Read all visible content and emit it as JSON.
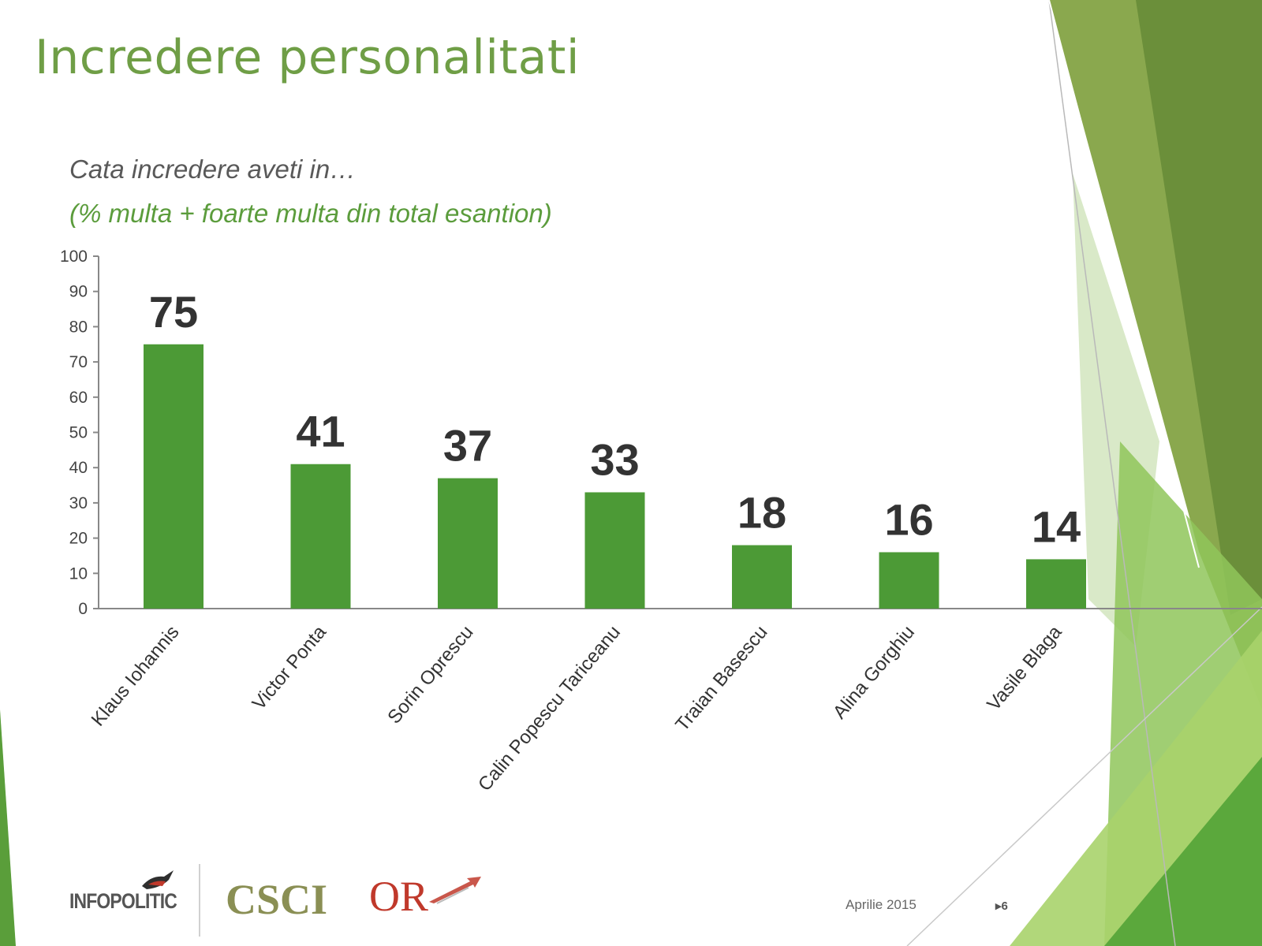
{
  "slide": {
    "title": "Incredere personalitati",
    "question": "Cata incredere aveti in…",
    "note": "(% multa + foarte multa din total esantion)"
  },
  "footer": {
    "date": "Aprilie 2015",
    "page": "▸6",
    "logos": [
      "INFOPOLITIC",
      "CSCI",
      "OR"
    ]
  },
  "colors": {
    "bar": "#4c9a36",
    "title": "#6f9e46",
    "note": "#5b9c3c",
    "value_label": "#333333",
    "axis": "#888888"
  },
  "icons": [
    "infopolitic-bird-icon",
    "or-arrow-icon",
    "page-arrow-icon"
  ],
  "chart_data": {
    "type": "bar",
    "title": "",
    "xlabel": "",
    "ylabel": "",
    "categories": [
      "Klaus Iohannis",
      "Victor Ponta",
      "Sorin Oprescu",
      "Calin Popescu Tariceanu",
      "Traian Basescu",
      "Alina Gorghiu",
      "Vasile Blaga"
    ],
    "values": [
      75,
      41,
      37,
      33,
      18,
      16,
      14
    ],
    "ylim": [
      0,
      100
    ],
    "yticks": [
      0,
      10,
      20,
      30,
      40,
      50,
      60,
      70,
      80,
      90,
      100
    ],
    "grid": false,
    "legend": "none",
    "data_labels": true
  }
}
